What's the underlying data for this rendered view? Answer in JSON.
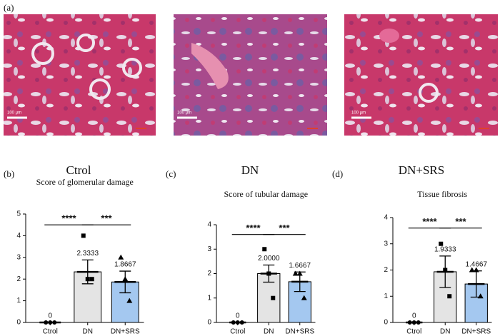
{
  "panel_a": {
    "label": "(a)",
    "images": [
      {
        "caption": "Ctrol",
        "scale_bar": "100 μm"
      },
      {
        "caption": "DN",
        "scale_bar": "100 μm"
      },
      {
        "caption": "DN+SRS",
        "scale_bar": "100 μm"
      }
    ]
  },
  "chart_data": [
    {
      "type": "bar",
      "panel": "(b)",
      "title": "Score of glomerular damage",
      "categories": [
        "Ctrol",
        "DN",
        "DN+SRS"
      ],
      "values": [
        0,
        2.3333,
        1.8667
      ],
      "errors": [
        0,
        0.55,
        0.5
      ],
      "points": [
        [
          0,
          0,
          0
        ],
        [
          4,
          2,
          2
        ],
        [
          3,
          2,
          1
        ]
      ],
      "colors": [
        "#ffffff",
        "#e4e4e4",
        "#a4c8f0"
      ],
      "ylim": [
        0,
        5
      ],
      "yticks": [
        0,
        1,
        2,
        3,
        4,
        5
      ],
      "annotations": [
        {
          "text": "****",
          "between": [
            "Ctrol",
            "DN"
          ]
        },
        {
          "text": "***",
          "between": [
            "DN",
            "DN+SRS"
          ]
        }
      ]
    },
    {
      "type": "bar",
      "panel": "(c)",
      "title": "Score of tubular  damage",
      "categories": [
        "Ctrol",
        "DN",
        "DN+SRS"
      ],
      "values": [
        0,
        2,
        1.6667
      ],
      "value_labels": [
        "0",
        "2.0000",
        "1.6667"
      ],
      "errors": [
        0,
        0.35,
        0.4
      ],
      "points": [
        [
          0,
          0,
          0
        ],
        [
          3,
          2,
          1
        ],
        [
          2,
          2,
          1
        ]
      ],
      "colors": [
        "#ffffff",
        "#e4e4e4",
        "#a4c8f0"
      ],
      "ylim": [
        0,
        4
      ],
      "yticks": [
        0,
        1,
        2,
        3,
        4
      ],
      "annotations": [
        {
          "text": "****",
          "between": [
            "Ctrol",
            "DN"
          ]
        },
        {
          "text": "***",
          "between": [
            "DN",
            "DN+SRS"
          ]
        }
      ]
    },
    {
      "type": "bar",
      "panel": "(d)",
      "title": "Tissue fibrosis",
      "categories": [
        "Ctrol",
        "DN",
        "DN+SRS"
      ],
      "values": [
        0,
        1.9333,
        1.4667
      ],
      "errors": [
        0,
        0.6,
        0.5
      ],
      "points": [
        [
          0,
          0,
          0
        ],
        [
          3,
          2,
          1
        ],
        [
          2,
          2,
          1
        ]
      ],
      "colors": [
        "#ffffff",
        "#e4e4e4",
        "#a4c8f0"
      ],
      "ylim": [
        0,
        4
      ],
      "yticks": [
        0,
        1,
        2,
        3,
        4
      ],
      "annotations": [
        {
          "text": "****",
          "between": [
            "Ctrol",
            "DN"
          ]
        },
        {
          "text": "***",
          "between": [
            "DN",
            "DN+SRS"
          ]
        }
      ]
    }
  ]
}
